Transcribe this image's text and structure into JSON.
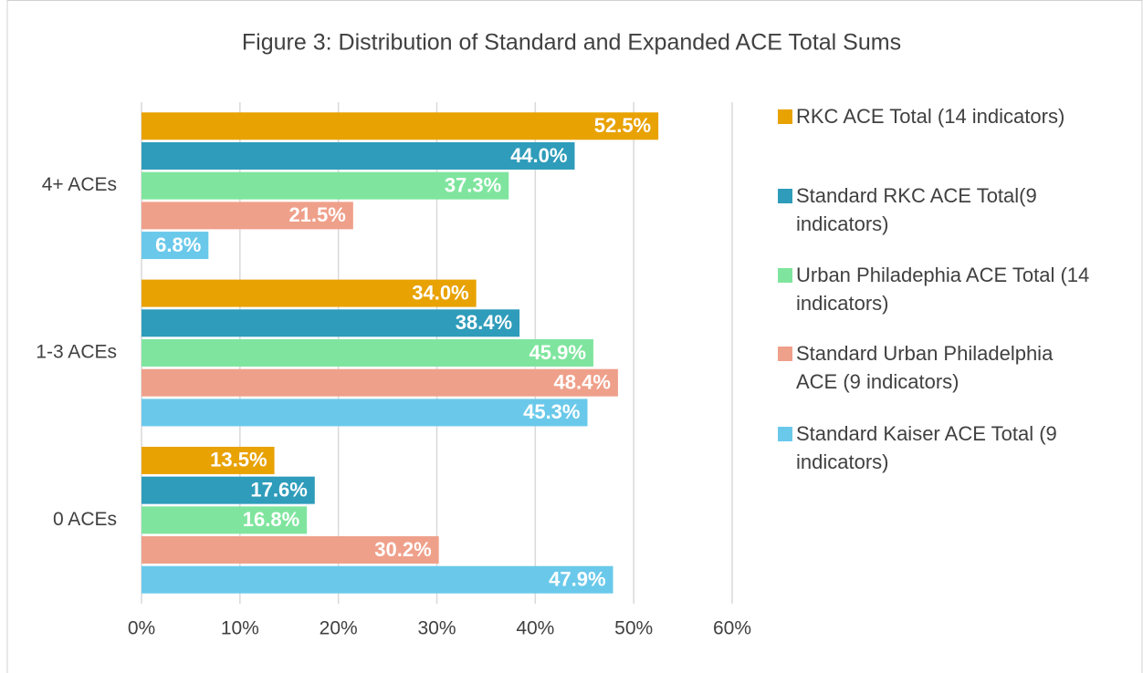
{
  "chart_data": {
    "type": "hbar",
    "title": "Figure 3: Distribution of Standard and Expanded ACE Total Sums",
    "categories": [
      "4+ ACEs",
      "1-3 ACEs",
      "0 ACEs"
    ],
    "series": [
      {
        "name": "RKC ACE Total (14 indicators)",
        "color": "#E8A202",
        "values": [
          52.5,
          34.0,
          13.5
        ],
        "value_labels": [
          "52.5%",
          "34.0%",
          "13.5%"
        ]
      },
      {
        "name": "Standard RKC ACE Total(9 indicators)",
        "color": "#2E9CBA",
        "values": [
          44.0,
          38.4,
          17.6
        ],
        "value_labels": [
          "44.0%",
          "38.4%",
          "17.6%"
        ]
      },
      {
        "name": "Urban Philadephia ACE Total (14 indicators)",
        "color": "#7FE59E",
        "values": [
          37.3,
          45.9,
          16.8
        ],
        "value_labels": [
          "37.3%",
          "45.9%",
          "16.8%"
        ]
      },
      {
        "name": "Standard Urban Philadelphia ACE (9 indicators)",
        "color": "#EFA08A",
        "values": [
          21.5,
          48.4,
          30.2
        ],
        "value_labels": [
          "21.5%",
          "48.4%",
          "30.2%"
        ]
      },
      {
        "name": "Standard Kaiser ACE Total (9 indicators)",
        "color": "#6AC9EA",
        "values": [
          6.8,
          45.3,
          47.9
        ],
        "value_labels": [
          "6.8%",
          "45.3%",
          "47.9%"
        ]
      }
    ],
    "xlim": [
      0,
      60
    ],
    "xticks": [
      {
        "value": 0,
        "label": "0%"
      },
      {
        "value": 10,
        "label": "10%"
      },
      {
        "value": 20,
        "label": "20%"
      },
      {
        "value": 30,
        "label": "30%"
      },
      {
        "value": 40,
        "label": "40%"
      },
      {
        "value": 50,
        "label": "50%"
      },
      {
        "value": 60,
        "label": "60%"
      }
    ],
    "grid": true
  }
}
